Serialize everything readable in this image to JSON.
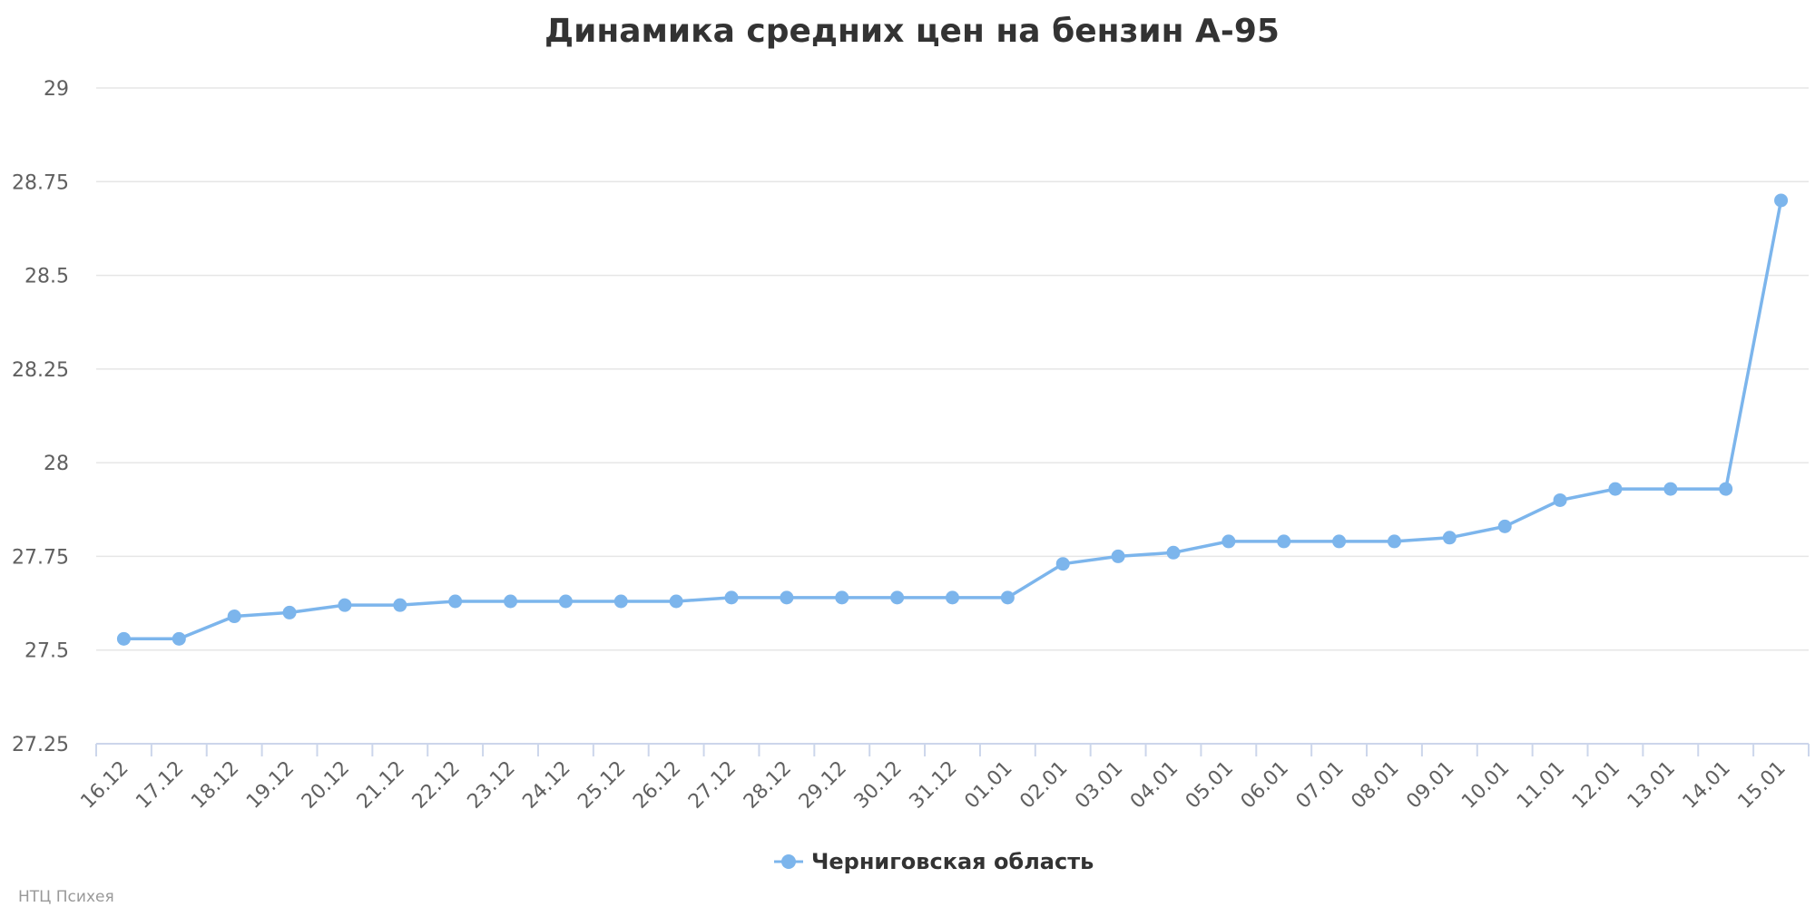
{
  "chart_data": {
    "type": "line",
    "title": "Динамика средних цен на бензин А-95",
    "categories": [
      "16.12",
      "17.12",
      "18.12",
      "19.12",
      "20.12",
      "21.12",
      "22.12",
      "23.12",
      "24.12",
      "25.12",
      "26.12",
      "27.12",
      "28.12",
      "29.12",
      "30.12",
      "31.12",
      "01.01",
      "02.01",
      "03.01",
      "04.01",
      "05.01",
      "06.01",
      "07.01",
      "08.01",
      "09.01",
      "10.01",
      "11.01",
      "12.01",
      "13.01",
      "14.01",
      "15.01"
    ],
    "series": [
      {
        "name": "Черниговская область",
        "color": "#7cb5ec",
        "values": [
          27.53,
          27.53,
          27.59,
          27.6,
          27.62,
          27.62,
          27.63,
          27.63,
          27.63,
          27.63,
          27.63,
          27.64,
          27.64,
          27.64,
          27.64,
          27.64,
          27.64,
          27.73,
          27.75,
          27.76,
          27.79,
          27.79,
          27.79,
          27.79,
          27.8,
          27.83,
          27.9,
          27.93,
          27.93,
          27.93,
          28.7
        ]
      }
    ],
    "xlabel": "",
    "ylabel": "",
    "ylim": [
      27.25,
      29
    ],
    "yticks": [
      "27.25",
      "27.5",
      "27.75",
      "28",
      "28.25",
      "28.5",
      "28.75",
      "29"
    ],
    "grid": true,
    "legend": "bottom-center"
  },
  "credits": "НТЦ Психея"
}
